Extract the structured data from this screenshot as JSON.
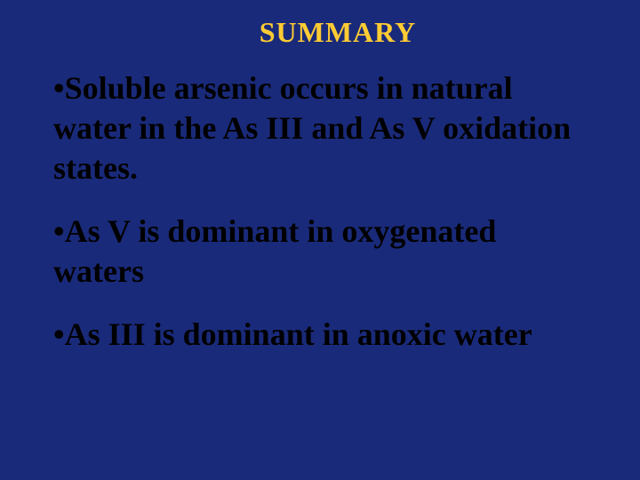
{
  "background_color": "#1a2a7a",
  "title": {
    "text": "SUMMARY",
    "color": "#ffcc33",
    "font_size": 32
  },
  "bullets": [
    {
      "marker": "•",
      "text": "Soluble arsenic occurs in natural water in the As III and As V oxidation states.",
      "color": "#000000",
      "font_size": 36
    },
    {
      "marker": "•",
      "text": "As V is dominant in oxygenated waters",
      "color": "#000000",
      "font_size": 36
    },
    {
      "marker": "•",
      "text": "As III is dominant in anoxic water",
      "color": "#000000",
      "font_size": 36
    }
  ]
}
